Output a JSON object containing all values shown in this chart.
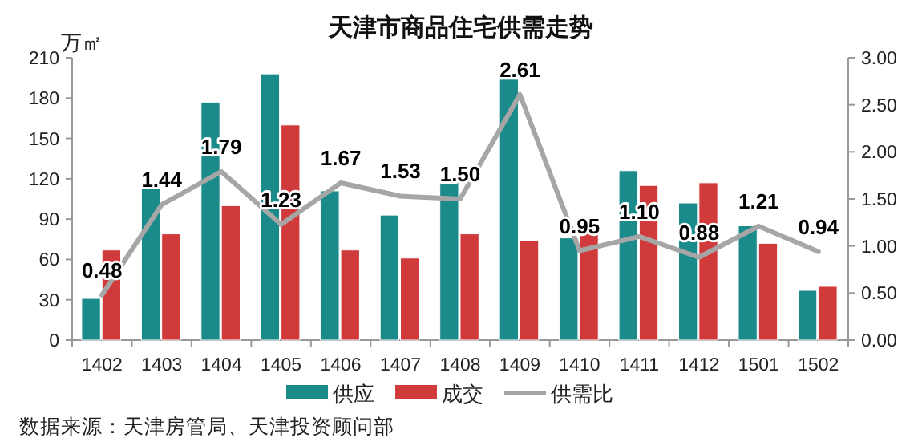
{
  "chart_data": {
    "type": "bar",
    "title": "天津市商品住宅供需走势",
    "ylabel": "万㎡",
    "categories": [
      "1402",
      "1403",
      "1404",
      "1405",
      "1406",
      "1407",
      "1408",
      "1409",
      "1410",
      "1411",
      "1412",
      "1501",
      "1502"
    ],
    "series": [
      {
        "name": "供应",
        "color": "#1a8a8a",
        "values": [
          31,
          113,
          177,
          198,
          111,
          93,
          119,
          194,
          76,
          126,
          102,
          85,
          37
        ]
      },
      {
        "name": "成交",
        "color": "#d03a3a",
        "values": [
          67,
          79,
          100,
          160,
          67,
          61,
          79,
          74,
          80,
          115,
          117,
          72,
          40
        ]
      },
      {
        "name": "供需比",
        "type": "line",
        "axis": "y2",
        "color": "#a6a6a6",
        "values": [
          0.48,
          1.44,
          1.79,
          1.23,
          1.67,
          1.53,
          1.5,
          2.61,
          0.95,
          1.1,
          0.88,
          1.21,
          0.94
        ],
        "value_labels": [
          "0.48",
          "1.44",
          "1.79",
          "1.23",
          "1.67",
          "1.53",
          "1.50",
          "2.61",
          "0.95",
          "1.10",
          "0.88",
          "1.21",
          "0.94"
        ]
      }
    ],
    "ylim": [
      0,
      210
    ],
    "yticks": [
      0,
      30,
      60,
      90,
      120,
      150,
      180,
      210
    ],
    "y2lim": [
      0,
      3
    ],
    "y2ticks": [
      {
        "value": 0,
        "label": "0.00"
      },
      {
        "value": 0.5,
        "label": "0.50"
      },
      {
        "value": 1,
        "label": "1.00"
      },
      {
        "value": 1.5,
        "label": "1.50"
      },
      {
        "value": 2,
        "label": "2.00"
      },
      {
        "value": 2.5,
        "label": "2.50"
      },
      {
        "value": 3,
        "label": "3.00"
      }
    ],
    "grid": false,
    "legend": "bottom",
    "marker": "none",
    "annotations": [
      "数据来源：天津房管局、天津投资顾问部"
    ]
  }
}
